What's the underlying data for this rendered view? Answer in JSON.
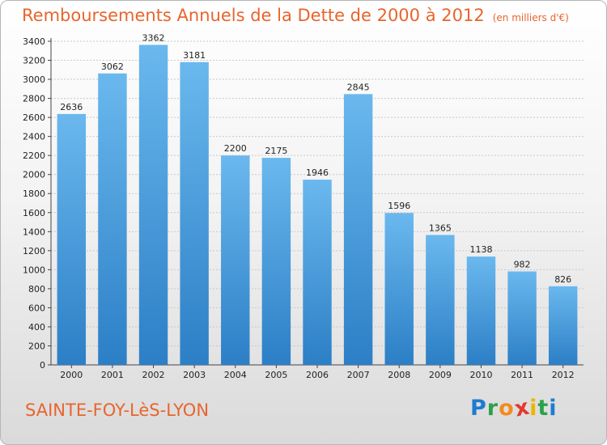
{
  "chart_data": {
    "type": "bar",
    "title": "Remboursements Annuels de la Dette de 2000 à 2012",
    "unit_note": "(en milliers d'€)",
    "categories": [
      "2000",
      "2001",
      "2002",
      "2003",
      "2004",
      "2005",
      "2006",
      "2007",
      "2008",
      "2009",
      "2010",
      "2011",
      "2012"
    ],
    "values": [
      2636,
      3062,
      3362,
      3181,
      2200,
      2175,
      1946,
      2845,
      1596,
      1365,
      1138,
      982,
      826
    ],
    "xlabel": "",
    "ylabel": "",
    "ylim": [
      0,
      3400
    ],
    "yticks": [
      0,
      200,
      400,
      600,
      800,
      1000,
      1200,
      1400,
      1600,
      1800,
      2000,
      2200,
      2400,
      2600,
      2800,
      3000,
      3200,
      3400
    ],
    "grid": true,
    "bar_color": "#2f8fd8"
  },
  "place": "SAINTE-FOY-LèS-LYON",
  "brand": {
    "letters": [
      "P",
      "r",
      "o",
      "x",
      "i",
      "t",
      "i"
    ],
    "colors": [
      "#1f7bd1",
      "#2aa24b",
      "#f28c1e",
      "#e23a2e",
      "#f0b400",
      "#2aa24b",
      "#1f7bd1"
    ]
  },
  "colors": {
    "accent": "#e8652d"
  }
}
